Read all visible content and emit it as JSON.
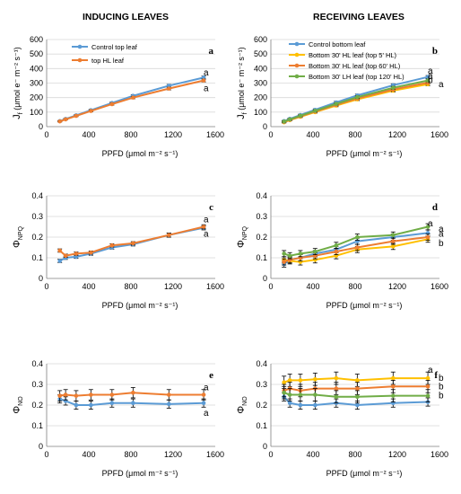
{
  "headers": {
    "left": "INDUCING LEAVES",
    "right": "RECEIVING LEAVES"
  },
  "colors": {
    "blue": "#5b9bd5",
    "orange": "#ed7d31",
    "yellow": "#ffc000",
    "green": "#70ad47"
  },
  "chart_data": [
    {
      "id": "a",
      "type": "line",
      "letter": "a",
      "ylabel_main": "J",
      "ylabel_sub": "f",
      "ylabel_rest": " (μmol e⁻ m⁻² s⁻¹)",
      "xlabel": "PPFD (μmol m⁻² s⁻¹)",
      "xlim": [
        0,
        1600
      ],
      "ylim": [
        0,
        600
      ],
      "xticks": [
        "0",
        "400",
        "800",
        "1200",
        "1600"
      ],
      "yticks": [
        "0",
        "100",
        "200",
        "300",
        "400",
        "500",
        "600"
      ],
      "xtick_values": [
        0,
        400,
        800,
        1200,
        1600
      ],
      "ytick_values": [
        0,
        100,
        200,
        300,
        400,
        500,
        600
      ],
      "x": [
        125,
        180,
        280,
        420,
        620,
        820,
        1160,
        1490
      ],
      "series": [
        {
          "name": "Control top leaf",
          "color": "#5b9bd5",
          "values": [
            38,
            53,
            78,
            113,
            163,
            212,
            282,
            338
          ],
          "errors": [
            4,
            4,
            5,
            6,
            7,
            8,
            9,
            10
          ]
        },
        {
          "name": "top HL leaf",
          "color": "#ed7d31",
          "values": [
            36,
            50,
            74,
            108,
            155,
            200,
            262,
            318
          ],
          "errors": [
            4,
            4,
            5,
            6,
            7,
            8,
            9,
            10
          ]
        }
      ],
      "sig_labels": [
        {
          "text": "a",
          "y": 372
        },
        {
          "text": "a",
          "y": 262
        }
      ],
      "legend": "top-left"
    },
    {
      "id": "b",
      "type": "line",
      "letter": "b",
      "ylabel_main": "J",
      "ylabel_sub": "f",
      "ylabel_rest": " (μmol e⁻ m⁻² s⁻¹)",
      "xlabel": "PPFD (μmol m⁻² s⁻¹)",
      "xlim": [
        0,
        1600
      ],
      "ylim": [
        0,
        600
      ],
      "xticks": [
        "0",
        "400",
        "800",
        "1200",
        "1600"
      ],
      "yticks": [
        "0",
        "100",
        "200",
        "300",
        "400",
        "500",
        "600"
      ],
      "xtick_values": [
        0,
        400,
        800,
        1200,
        1600
      ],
      "ytick_values": [
        0,
        100,
        200,
        300,
        400,
        500,
        600
      ],
      "x": [
        125,
        180,
        280,
        420,
        620,
        820,
        1160,
        1490
      ],
      "series": [
        {
          "name": "Control bottom leaf",
          "color": "#5b9bd5",
          "values": [
            38,
            54,
            80,
            116,
            167,
            215,
            285,
            342
          ],
          "errors": [
            5,
            5,
            6,
            7,
            8,
            9,
            10,
            10
          ]
        },
        {
          "name": "Bottom 30' HL leaf (top 5' HL)",
          "color": "#ffc000",
          "values": [
            30,
            45,
            68,
            100,
            145,
            188,
            248,
            292
          ],
          "errors": [
            5,
            5,
            6,
            7,
            8,
            9,
            10,
            10
          ]
        },
        {
          "name": "Bottom 30' HL leaf (top 60' HL)",
          "color": "#ed7d31",
          "values": [
            32,
            47,
            71,
            104,
            150,
            194,
            256,
            303
          ],
          "errors": [
            5,
            5,
            6,
            7,
            8,
            9,
            10,
            10
          ]
        },
        {
          "name": "Bottom 30' LH leaf (top 120' HL)",
          "color": "#70ad47",
          "values": [
            35,
            50,
            75,
            109,
            157,
            203,
            268,
            318
          ],
          "errors": [
            5,
            5,
            6,
            7,
            8,
            9,
            10,
            10
          ]
        }
      ],
      "sig_labels": [
        {
          "text": "a",
          "y": 385
        },
        {
          "text": "a",
          "y": 350
        },
        {
          "text": "b",
          "y": 318
        },
        {
          "text": "a",
          "y": 292
        }
      ],
      "legend": "top-left"
    },
    {
      "id": "c",
      "type": "line",
      "letter": "c",
      "ylabel_main": "Φ",
      "ylabel_sub": "NPQ",
      "ylabel_rest": "",
      "xlabel": "PPFD (μmol m⁻² s⁻¹)",
      "xlim": [
        0,
        1600
      ],
      "ylim": [
        0,
        0.4
      ],
      "xticks": [
        "0",
        "400",
        "800",
        "1200",
        "1600"
      ],
      "yticks": [
        "0",
        "0.1",
        "0.2",
        "0.3",
        "0.4"
      ],
      "xtick_values": [
        0,
        400,
        800,
        1200,
        1600
      ],
      "ytick_values": [
        0,
        0.1,
        0.2,
        0.3,
        0.4
      ],
      "x": [
        125,
        180,
        280,
        420,
        620,
        820,
        1160,
        1490
      ],
      "series": [
        {
          "name": "Control top leaf",
          "color": "#5b9bd5",
          "values": [
            0.085,
            0.1,
            0.105,
            0.12,
            0.15,
            0.165,
            0.21,
            0.245
          ],
          "errors": [
            0.008,
            0.008,
            0.008,
            0.008,
            0.008,
            0.008,
            0.01,
            0.01
          ]
        },
        {
          "name": "top HL leaf",
          "color": "#ed7d31",
          "values": [
            0.135,
            0.11,
            0.12,
            0.125,
            0.16,
            0.17,
            0.21,
            0.25
          ],
          "errors": [
            0.008,
            0.008,
            0.008,
            0.008,
            0.008,
            0.008,
            0.01,
            0.01
          ]
        }
      ],
      "sig_labels": [
        {
          "text": "a",
          "y": 0.285
        },
        {
          "text": "a",
          "y": 0.215
        }
      ]
    },
    {
      "id": "d",
      "type": "line",
      "letter": "d",
      "ylabel_main": "Φ",
      "ylabel_sub": "NPQ",
      "ylabel_rest": "",
      "xlabel": "PPFD (μmol m⁻² s⁻¹)",
      "xlim": [
        0,
        1600
      ],
      "ylim": [
        0,
        0.4
      ],
      "xticks": [
        "0",
        "400",
        "800",
        "1200",
        "1600"
      ],
      "yticks": [
        "0",
        "0.1",
        "0.2",
        "0.3",
        "0.4"
      ],
      "xtick_values": [
        0,
        400,
        800,
        1200,
        1600
      ],
      "ytick_values": [
        0,
        0.1,
        0.2,
        0.3,
        0.4
      ],
      "x": [
        125,
        180,
        280,
        420,
        620,
        820,
        1160,
        1490
      ],
      "series": [
        {
          "name": "Control bottom leaf",
          "color": "#5b9bd5",
          "values": [
            0.07,
            0.09,
            0.1,
            0.12,
            0.14,
            0.18,
            0.2,
            0.22
          ],
          "errors": [
            0.015,
            0.015,
            0.015,
            0.015,
            0.015,
            0.015,
            0.015,
            0.015
          ]
        },
        {
          "name": "Bottom 30' HL leaf (top 5' HL)",
          "color": "#ffc000",
          "values": [
            0.09,
            0.085,
            0.08,
            0.09,
            0.11,
            0.14,
            0.155,
            0.19
          ],
          "errors": [
            0.015,
            0.015,
            0.015,
            0.015,
            0.015,
            0.015,
            0.015,
            0.015
          ]
        },
        {
          "name": "Bottom 30' HL leaf (top 60' HL)",
          "color": "#ed7d31",
          "values": [
            0.08,
            0.09,
            0.1,
            0.11,
            0.13,
            0.15,
            0.18,
            0.2
          ],
          "errors": [
            0.015,
            0.015,
            0.015,
            0.015,
            0.015,
            0.015,
            0.015,
            0.015
          ]
        },
        {
          "name": "Bottom 30' LH leaf (top 120' HL)",
          "color": "#70ad47",
          "values": [
            0.12,
            0.11,
            0.12,
            0.13,
            0.16,
            0.2,
            0.21,
            0.25
          ],
          "errors": [
            0.015,
            0.015,
            0.015,
            0.015,
            0.015,
            0.015,
            0.015,
            0.015
          ]
        }
      ],
      "sig_labels": [
        {
          "text": "a",
          "y": 0.265
        },
        {
          "text": "a",
          "y": 0.24
        },
        {
          "text": "a",
          "y": 0.215
        },
        {
          "text": "b",
          "y": 0.17
        }
      ]
    },
    {
      "id": "e",
      "type": "line",
      "letter": "e",
      "ylabel_main": "Φ",
      "ylabel_sub": "NO",
      "ylabel_rest": "",
      "xlabel": "PPFD (μmol m⁻² s⁻¹)",
      "xlim": [
        0,
        1600
      ],
      "ylim": [
        0,
        0.4
      ],
      "xticks": [
        "0",
        "400",
        "800",
        "1200",
        "1600"
      ],
      "yticks": [
        "0",
        "0.1",
        "0.2",
        "0.3",
        "0.4"
      ],
      "xtick_values": [
        0,
        400,
        800,
        1200,
        1600
      ],
      "ytick_values": [
        0,
        0.1,
        0.2,
        0.3,
        0.4
      ],
      "x": [
        125,
        180,
        280,
        420,
        620,
        820,
        1160,
        1490
      ],
      "series": [
        {
          "name": "Control top leaf",
          "color": "#5b9bd5",
          "values": [
            0.23,
            0.22,
            0.2,
            0.2,
            0.21,
            0.21,
            0.205,
            0.21
          ],
          "errors": [
            0.02,
            0.02,
            0.02,
            0.02,
            0.02,
            0.02,
            0.02,
            0.02
          ]
        },
        {
          "name": "top HL leaf",
          "color": "#ed7d31",
          "values": [
            0.245,
            0.25,
            0.245,
            0.25,
            0.25,
            0.26,
            0.25,
            0.25
          ],
          "errors": [
            0.025,
            0.025,
            0.025,
            0.025,
            0.025,
            0.025,
            0.025,
            0.025
          ]
        }
      ],
      "sig_labels": [
        {
          "text": "a",
          "y": 0.285
        },
        {
          "text": "a",
          "y": 0.16
        }
      ]
    },
    {
      "id": "f",
      "type": "line",
      "letter": "f",
      "ylabel_main": "Φ",
      "ylabel_sub": "NO",
      "ylabel_rest": "",
      "xlabel": "PPFD (μmol m⁻² s⁻¹)",
      "xlim": [
        0,
        1600
      ],
      "ylim": [
        0,
        0.4
      ],
      "xticks": [
        "0",
        "400",
        "800",
        "1200",
        "1600"
      ],
      "yticks": [
        "0",
        "0.1",
        "0.2",
        "0.3",
        "0.4"
      ],
      "xtick_values": [
        0,
        400,
        800,
        1200,
        1600
      ],
      "ytick_values": [
        0,
        0.1,
        0.2,
        0.3,
        0.4
      ],
      "x": [
        125,
        180,
        280,
        420,
        620,
        820,
        1160,
        1490
      ],
      "series": [
        {
          "name": "Control bottom leaf",
          "color": "#5b9bd5",
          "values": [
            0.24,
            0.21,
            0.2,
            0.2,
            0.21,
            0.2,
            0.21,
            0.215
          ],
          "errors": [
            0.02,
            0.02,
            0.02,
            0.02,
            0.02,
            0.02,
            0.02,
            0.02
          ]
        },
        {
          "name": "Bottom 30' HL leaf (top 5' HL)",
          "color": "#ffc000",
          "values": [
            0.31,
            0.32,
            0.32,
            0.325,
            0.33,
            0.32,
            0.33,
            0.33
          ],
          "errors": [
            0.03,
            0.03,
            0.03,
            0.03,
            0.03,
            0.03,
            0.03,
            0.03
          ]
        },
        {
          "name": "Bottom 30' HL leaf (top 60' HL)",
          "color": "#ed7d31",
          "values": [
            0.27,
            0.28,
            0.27,
            0.28,
            0.28,
            0.28,
            0.29,
            0.29
          ],
          "errors": [
            0.03,
            0.03,
            0.03,
            0.03,
            0.03,
            0.03,
            0.03,
            0.03
          ]
        },
        {
          "name": "Bottom 30' LH leaf (top 120' HL)",
          "color": "#70ad47",
          "values": [
            0.26,
            0.25,
            0.25,
            0.25,
            0.24,
            0.24,
            0.245,
            0.245
          ],
          "errors": [
            0.03,
            0.03,
            0.03,
            0.03,
            0.03,
            0.03,
            0.03,
            0.03
          ]
        }
      ],
      "sig_labels": [
        {
          "text": "a",
          "y": 0.37
        },
        {
          "text": "b",
          "y": 0.33
        },
        {
          "text": "b",
          "y": 0.29
        },
        {
          "text": "b",
          "y": 0.245
        }
      ]
    }
  ]
}
